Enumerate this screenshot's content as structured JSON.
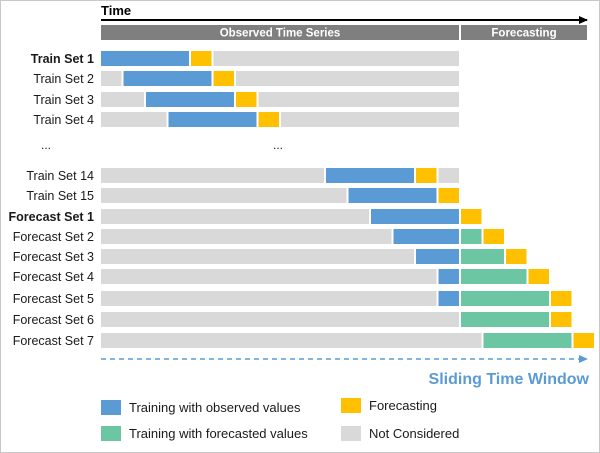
{
  "time_label": "Time",
  "headers": {
    "observed": "Observed Time Series",
    "forecasting": "Forecasting"
  },
  "ellipsis": "...",
  "sliding_label": "Sliding Time Window",
  "colors": {
    "observed": "#5b9bd5",
    "forecast": "#ffc000",
    "forecasted_training": "#6cc5a3",
    "not_considered": "#d9d9d9",
    "header": "#7f7f7f",
    "sliding": "#5b9bd5"
  },
  "rows": [
    {
      "label": "Train Set 1",
      "bold": true,
      "blocks": [
        [
          "blue",
          0,
          1
        ],
        [
          "yellow",
          1,
          1.25
        ],
        [
          "gray",
          1.25,
          4
        ]
      ]
    },
    {
      "label": "Train Set 2",
      "bold": false,
      "blocks": [
        [
          "gray",
          0,
          0.25
        ],
        [
          "blue",
          0.25,
          1.25
        ],
        [
          "yellow",
          1.25,
          1.5
        ],
        [
          "gray",
          1.5,
          4
        ]
      ]
    },
    {
      "label": "Train Set 3",
      "bold": false,
      "blocks": [
        [
          "gray",
          0,
          0.5
        ],
        [
          "blue",
          0.5,
          1.5
        ],
        [
          "yellow",
          1.5,
          1.75
        ],
        [
          "gray",
          1.75,
          4
        ]
      ]
    },
    {
      "label": "Train Set 4",
      "bold": false,
      "blocks": [
        [
          "gray",
          0,
          0.75
        ],
        [
          "blue",
          0.75,
          1.75
        ],
        [
          "yellow",
          1.75,
          2
        ],
        [
          "gray",
          2,
          4
        ]
      ]
    },
    {
      "label": "Train Set 14",
      "bold": false,
      "blocks": [
        [
          "gray",
          0,
          2.5
        ],
        [
          "blue",
          2.5,
          3.5
        ],
        [
          "yellow",
          3.5,
          3.75
        ],
        [
          "gray",
          3.75,
          4
        ]
      ]
    },
    {
      "label": "Train Set 15",
      "bold": false,
      "blocks": [
        [
          "gray",
          0,
          2.75
        ],
        [
          "blue",
          2.75,
          3.75
        ],
        [
          "yellow",
          3.75,
          4
        ]
      ]
    },
    {
      "label": "Forecast Set 1",
      "bold": true,
      "blocks": [
        [
          "gray",
          0,
          3
        ],
        [
          "blue",
          3,
          4
        ],
        [
          "yellow",
          4,
          4.25
        ]
      ]
    },
    {
      "label": "Forecast Set 2",
      "bold": false,
      "blocks": [
        [
          "gray",
          0,
          3.25
        ],
        [
          "blue",
          3.25,
          4
        ],
        [
          "green",
          4,
          4.25
        ],
        [
          "yellow",
          4.25,
          4.5
        ]
      ]
    },
    {
      "label": "Forecast Set 3",
      "bold": false,
      "blocks": [
        [
          "gray",
          0,
          3.5
        ],
        [
          "blue",
          3.5,
          4
        ],
        [
          "green",
          4,
          4.5
        ],
        [
          "yellow",
          4.5,
          4.75
        ]
      ]
    },
    {
      "label": "Forecast Set 4",
      "bold": false,
      "blocks": [
        [
          "gray",
          0,
          3.75
        ],
        [
          "blue",
          3.75,
          4
        ],
        [
          "green",
          4,
          4.75
        ],
        [
          "yellow",
          4.75,
          5
        ]
      ]
    },
    {
      "label": "Forecast Set 5",
      "bold": false,
      "blocks": [
        [
          "gray",
          0,
          3.75
        ],
        [
          "blue",
          3.75,
          4
        ],
        [
          "green",
          4,
          5
        ],
        [
          "yellow",
          5,
          5.25
        ]
      ]
    },
    {
      "label": "Forecast Set 6",
      "bold": false,
      "blocks": [
        [
          "gray",
          0,
          4
        ],
        [
          "green",
          4,
          5
        ],
        [
          "yellow",
          5,
          5.25
        ]
      ]
    },
    {
      "label": "Forecast Set 7",
      "bold": false,
      "blocks": [
        [
          "gray",
          0,
          4.25
        ],
        [
          "green",
          4.25,
          5.25
        ],
        [
          "yellow",
          5.25,
          5.5
        ]
      ]
    }
  ],
  "legend": [
    {
      "label": "Training with observed values",
      "color_key": "observed"
    },
    {
      "label": "Forecasting",
      "color_key": "forecast"
    },
    {
      "label": "Training with forecasted values",
      "color_key": "forecasted_training"
    },
    {
      "label": "Not Considered",
      "color_key": "not_considered"
    }
  ]
}
